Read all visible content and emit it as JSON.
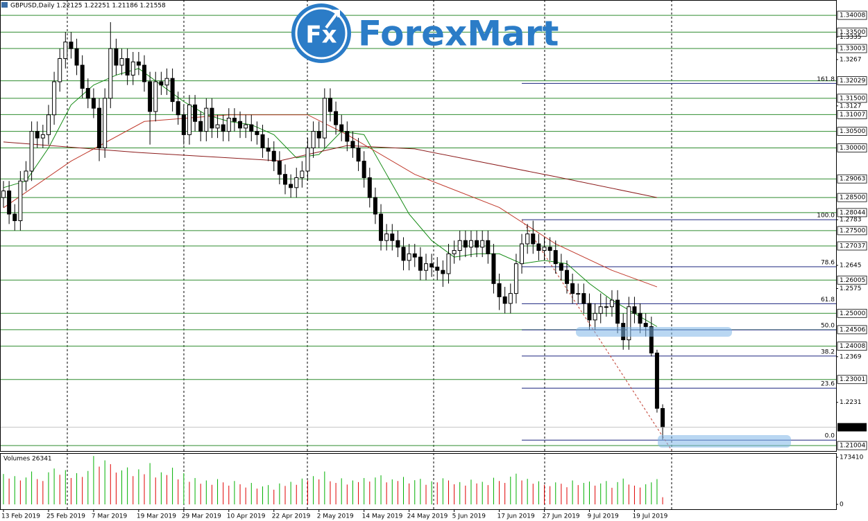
{
  "logo": {
    "badge": "Fx",
    "text": "ForexMart"
  },
  "chart_data": {
    "type": "candlestick",
    "title": "GBPUSD,Daily  1.22125 1.22251 1.21186 1.21558",
    "volume_title": "Volumes 26341",
    "categories": [
      "13 Feb 2019",
      null,
      null,
      null,
      null,
      null,
      null,
      null,
      "25 Feb 2019",
      null,
      null,
      null,
      null,
      null,
      null,
      null,
      "7 Mar 2019",
      null,
      null,
      null,
      null,
      null,
      null,
      null,
      "19 Mar 2019",
      null,
      null,
      null,
      null,
      null,
      null,
      null,
      "29 Mar 2019",
      null,
      null,
      null,
      null,
      null,
      null,
      null,
      "10 Apr 2019",
      null,
      null,
      null,
      null,
      null,
      null,
      null,
      "22 Apr 2019",
      null,
      null,
      null,
      null,
      null,
      null,
      null,
      "2 May 2019",
      null,
      null,
      null,
      null,
      null,
      null,
      null,
      "14 May 2019",
      null,
      null,
      null,
      null,
      null,
      null,
      null,
      "24 May 2019",
      null,
      null,
      null,
      null,
      null,
      null,
      null,
      "5 Jun 2019",
      null,
      null,
      null,
      null,
      null,
      null,
      null,
      "17 Jun 2019",
      null,
      null,
      null,
      null,
      null,
      null,
      null,
      "27 Jun 2019",
      null,
      null,
      null,
      null,
      null,
      null,
      null,
      "9 Jul 2019",
      null,
      null,
      null,
      null,
      null,
      null,
      null,
      "19 Jul 2019",
      null,
      null,
      null,
      null,
      null
    ],
    "ohlc": [
      [
        1.285,
        1.29,
        1.282,
        1.287
      ],
      [
        1.287,
        1.29,
        1.277,
        1.28
      ],
      [
        1.28,
        1.283,
        1.275,
        1.278
      ],
      [
        1.278,
        1.293,
        1.275,
        1.29
      ],
      [
        1.29,
        1.296,
        1.287,
        1.293
      ],
      [
        1.293,
        1.308,
        1.29,
        1.305
      ],
      [
        1.305,
        1.308,
        1.3,
        1.303
      ],
      [
        1.303,
        1.307,
        1.3,
        1.304
      ],
      [
        1.304,
        1.313,
        1.301,
        1.31
      ],
      [
        1.31,
        1.323,
        1.307,
        1.32
      ],
      [
        1.32,
        1.33,
        1.317,
        1.327
      ],
      [
        1.327,
        1.335,
        1.324,
        1.332
      ],
      [
        1.332,
        1.335,
        1.327,
        1.33
      ],
      [
        1.33,
        1.333,
        1.322,
        1.325
      ],
      [
        1.325,
        1.328,
        1.315,
        1.318
      ],
      [
        1.318,
        1.321,
        1.312,
        1.315
      ],
      [
        1.315,
        1.318,
        1.309,
        1.312
      ],
      [
        1.312,
        1.315,
        1.296,
        1.3
      ],
      [
        1.3,
        1.318,
        1.297,
        1.315
      ],
      [
        1.315,
        1.338,
        1.312,
        1.33
      ],
      [
        1.33,
        1.333,
        1.322,
        1.325
      ],
      [
        1.325,
        1.33,
        1.322,
        1.327
      ],
      [
        1.327,
        1.33,
        1.319,
        1.322
      ],
      [
        1.322,
        1.329,
        1.319,
        1.326
      ],
      [
        1.326,
        1.329,
        1.322,
        1.325
      ],
      [
        1.325,
        1.328,
        1.317,
        1.32
      ],
      [
        1.32,
        1.323,
        1.301,
        1.311
      ],
      [
        1.311,
        1.323,
        1.308,
        1.32
      ],
      [
        1.32,
        1.323,
        1.316,
        1.319
      ],
      [
        1.319,
        1.324,
        1.316,
        1.321
      ],
      [
        1.321,
        1.324,
        1.311,
        1.314
      ],
      [
        1.314,
        1.317,
        1.307,
        1.31
      ],
      [
        1.31,
        1.313,
        1.301,
        1.304
      ],
      [
        1.304,
        1.316,
        1.301,
        1.313
      ],
      [
        1.313,
        1.316,
        1.305,
        1.308
      ],
      [
        1.308,
        1.311,
        1.302,
        1.305
      ],
      [
        1.305,
        1.315,
        1.302,
        1.312
      ],
      [
        1.312,
        1.315,
        1.303,
        1.306
      ],
      [
        1.306,
        1.31,
        1.303,
        1.307
      ],
      [
        1.307,
        1.31,
        1.302,
        1.305
      ],
      [
        1.305,
        1.312,
        1.302,
        1.309
      ],
      [
        1.309,
        1.312,
        1.305,
        1.308
      ],
      [
        1.308,
        1.311,
        1.303,
        1.306
      ],
      [
        1.306,
        1.31,
        1.303,
        1.307
      ],
      [
        1.307,
        1.31,
        1.302,
        1.305
      ],
      [
        1.305,
        1.308,
        1.301,
        1.304
      ],
      [
        1.304,
        1.307,
        1.297,
        1.3
      ],
      [
        1.3,
        1.303,
        1.296,
        1.299
      ],
      [
        1.299,
        1.302,
        1.293,
        1.296
      ],
      [
        1.296,
        1.299,
        1.289,
        1.292
      ],
      [
        1.292,
        1.295,
        1.286,
        1.289
      ],
      [
        1.289,
        1.292,
        1.285,
        1.288
      ],
      [
        1.288,
        1.294,
        1.285,
        1.291
      ],
      [
        1.291,
        1.296,
        1.288,
        1.293
      ],
      [
        1.293,
        1.303,
        1.29,
        1.3
      ],
      [
        1.3,
        1.308,
        1.297,
        1.305
      ],
      [
        1.305,
        1.308,
        1.3,
        1.303
      ],
      [
        1.303,
        1.318,
        1.3,
        1.315
      ],
      [
        1.315,
        1.318,
        1.308,
        1.311
      ],
      [
        1.311,
        1.314,
        1.304,
        1.307
      ],
      [
        1.307,
        1.31,
        1.302,
        1.305
      ],
      [
        1.305,
        1.308,
        1.299,
        1.302
      ],
      [
        1.302,
        1.305,
        1.297,
        1.3
      ],
      [
        1.3,
        1.303,
        1.293,
        1.296
      ],
      [
        1.296,
        1.299,
        1.288,
        1.291
      ],
      [
        1.291,
        1.294,
        1.282,
        1.285
      ],
      [
        1.285,
        1.288,
        1.277,
        1.28
      ],
      [
        1.28,
        1.283,
        1.269,
        1.272
      ],
      [
        1.272,
        1.277,
        1.269,
        1.274
      ],
      [
        1.274,
        1.277,
        1.269,
        1.272
      ],
      [
        1.272,
        1.275,
        1.267,
        1.27
      ],
      [
        1.27,
        1.273,
        1.263,
        1.266
      ],
      [
        1.266,
        1.271,
        1.263,
        1.268
      ],
      [
        1.268,
        1.271,
        1.264,
        1.267
      ],
      [
        1.267,
        1.27,
        1.26,
        1.263
      ],
      [
        1.263,
        1.268,
        1.26,
        1.265
      ],
      [
        1.265,
        1.268,
        1.261,
        1.264
      ],
      [
        1.264,
        1.267,
        1.26,
        1.263
      ],
      [
        1.263,
        1.266,
        1.258,
        1.262
      ],
      [
        1.262,
        1.271,
        1.259,
        1.268
      ],
      [
        1.268,
        1.272,
        1.265,
        1.269
      ],
      [
        1.269,
        1.275,
        1.266,
        1.272
      ],
      [
        1.272,
        1.275,
        1.267,
        1.27
      ],
      [
        1.27,
        1.275,
        1.267,
        1.272
      ],
      [
        1.272,
        1.275,
        1.267,
        1.27
      ],
      [
        1.27,
        1.275,
        1.267,
        1.272
      ],
      [
        1.272,
        1.275,
        1.265,
        1.268
      ],
      [
        1.268,
        1.271,
        1.256,
        1.259
      ],
      [
        1.259,
        1.262,
        1.251,
        1.255
      ],
      [
        1.255,
        1.258,
        1.25,
        1.253
      ],
      [
        1.253,
        1.259,
        1.25,
        1.256
      ],
      [
        1.256,
        1.268,
        1.253,
        1.265
      ],
      [
        1.265,
        1.274,
        1.262,
        1.271
      ],
      [
        1.271,
        1.277,
        1.268,
        1.274
      ],
      [
        1.274,
        1.278,
        1.268,
        1.271
      ],
      [
        1.271,
        1.274,
        1.266,
        1.269
      ],
      [
        1.269,
        1.273,
        1.266,
        1.27
      ],
      [
        1.27,
        1.273,
        1.266,
        1.269
      ],
      [
        1.269,
        1.272,
        1.262,
        1.265
      ],
      [
        1.265,
        1.268,
        1.26,
        1.263
      ],
      [
        1.263,
        1.266,
        1.256,
        1.259
      ],
      [
        1.259,
        1.262,
        1.253,
        1.256
      ],
      [
        1.256,
        1.259,
        1.253,
        1.256
      ],
      [
        1.256,
        1.259,
        1.25,
        1.253
      ],
      [
        1.253,
        1.256,
        1.245,
        1.248
      ],
      [
        1.248,
        1.253,
        1.245,
        1.25
      ],
      [
        1.25,
        1.256,
        1.247,
        1.252
      ],
      [
        1.252,
        1.255,
        1.249,
        1.252
      ],
      [
        1.252,
        1.257,
        1.249,
        1.254
      ],
      [
        1.254,
        1.257,
        1.244,
        1.247
      ],
      [
        1.247,
        1.25,
        1.239,
        1.242
      ],
      [
        1.242,
        1.255,
        1.239,
        1.252
      ],
      [
        1.252,
        1.255,
        1.247,
        1.25
      ],
      [
        1.25,
        1.253,
        1.244,
        1.247
      ],
      [
        1.247,
        1.25,
        1.243,
        1.246
      ],
      [
        1.246,
        1.249,
        1.237,
        1.238
      ],
      [
        1.238,
        1.239,
        1.22,
        1.2213
      ],
      [
        1.22125,
        1.22251,
        1.21186,
        1.21558
      ]
    ],
    "volumes": [
      112000,
      95000,
      104000,
      88000,
      99000,
      121000,
      93000,
      86000,
      118000,
      132000,
      109000,
      126000,
      97000,
      115000,
      101000,
      123000,
      178000,
      139000,
      162000,
      148000,
      117000,
      125000,
      136000,
      104000,
      129000,
      111000,
      152000,
      99000,
      118000,
      108000,
      135000,
      92000,
      115000,
      83000,
      97000,
      76000,
      88000,
      72000,
      93000,
      81000,
      69000,
      86000,
      74000,
      62000,
      79000,
      58000,
      66000,
      71000,
      54000,
      77000,
      68000,
      83000,
      72000,
      95000,
      88000,
      104000,
      92000,
      121000,
      85000,
      79000,
      96000,
      73000,
      88000,
      82000,
      97000,
      84000,
      99000,
      107000,
      81000,
      92000,
      86000,
      101000,
      77000,
      89000,
      94000,
      72000,
      85000,
      81000,
      96000,
      88000,
      74000,
      82000,
      69000,
      91000,
      77000,
      83000,
      71000,
      98000,
      86000,
      79000,
      102000,
      113000,
      88000,
      94000,
      76000,
      85000,
      72000,
      67000,
      81000,
      76000,
      63000,
      88000,
      71000,
      79000,
      84000,
      69000,
      77000,
      86000,
      61000,
      82000,
      95000,
      73000,
      69000,
      62000,
      74000,
      81000,
      93000,
      26341
    ],
    "volume_up_color": "#00b000",
    "volume_down_color": "#e00000",
    "ylim": [
      1.2086,
      1.3447
    ],
    "yticks": [
      1.3335,
      1.3267,
      1.3127,
      1.2783,
      1.2645,
      1.2575,
      1.2369,
      1.2231
    ],
    "levels": [
      1.34008,
      {
        "value": 1.335,
        "label": "1.33500"
      },
      1.33003,
      1.32029,
      {
        "value": 1.315,
        "label": "1.31500"
      },
      1.31007,
      {
        "value": 1.305,
        "label": "1.30500"
      },
      {
        "value": 1.3,
        "label": "1.30000"
      },
      1.29063,
      {
        "value": 1.285,
        "label": "1.28500"
      },
      1.28044,
      {
        "value": 1.275,
        "label": "1.27500"
      },
      1.27037,
      1.26005,
      {
        "value": 1.25,
        "label": "1.25000"
      },
      1.24506,
      1.24008,
      1.23001,
      1.21004
    ],
    "level_color": "#2e8b2e",
    "last_price": 1.21558,
    "vlim": [
      0,
      186160
    ],
    "vticks": [
      173410,
      0
    ],
    "ma_lines": [
      {
        "color": "#138a13",
        "points": [
          [
            0,
            1.288
          ],
          [
            4,
            1.29
          ],
          [
            8,
            1.3
          ],
          [
            12,
            1.313
          ],
          [
            16,
            1.319
          ],
          [
            20,
            1.322
          ],
          [
            24,
            1.324
          ],
          [
            28,
            1.319
          ],
          [
            32,
            1.314
          ],
          [
            36,
            1.31
          ],
          [
            40,
            1.308
          ],
          [
            44,
            1.307
          ],
          [
            48,
            1.304
          ],
          [
            52,
            1.297
          ],
          [
            56,
            1.298
          ],
          [
            60,
            1.305
          ],
          [
            64,
            1.304
          ],
          [
            68,
            1.292
          ],
          [
            72,
            1.28
          ],
          [
            76,
            1.272
          ],
          [
            80,
            1.267
          ],
          [
            84,
            1.268
          ],
          [
            88,
            1.268
          ],
          [
            92,
            1.265
          ],
          [
            96,
            1.266
          ],
          [
            100,
            1.265
          ],
          [
            104,
            1.259
          ],
          [
            108,
            1.254
          ],
          [
            112,
            1.25
          ],
          [
            116,
            1.246
          ]
        ]
      },
      {
        "color": "#c0392b",
        "points": [
          [
            0,
            1.2819
          ],
          [
            12,
            1.296
          ],
          [
            25,
            1.308
          ],
          [
            40,
            1.31
          ],
          [
            54,
            1.31
          ],
          [
            61,
            1.304
          ],
          [
            73,
            1.292
          ],
          [
            88,
            1.282
          ],
          [
            98,
            1.271
          ],
          [
            108,
            1.263
          ],
          [
            116,
            1.258
          ]
        ]
      },
      {
        "color": "#8b1a1a",
        "points": [
          [
            0,
            1.3018
          ],
          [
            24,
            1.2986
          ],
          [
            49,
            1.2961
          ],
          [
            61,
            1.3007
          ],
          [
            73,
            1.2997
          ],
          [
            98,
            1.2913
          ],
          [
            116,
            1.285
          ]
        ]
      }
    ],
    "trendline": {
      "color": "#c0392b",
      "points": [
        [
          92,
          1.2783
        ],
        [
          118.6,
          1.2086
        ]
      ]
    },
    "fibo": {
      "color": "#1a237e",
      "start": 92,
      "levels": [
        {
          "value": 161.8,
          "price": 1.3195
        },
        {
          "value": 100,
          "label": "100.0",
          "price": 1.2783
        },
        {
          "value": 78.6,
          "price": 1.2641
        },
        {
          "value": 61.8,
          "price": 1.2529
        },
        {
          "value": 50,
          "label": "50.0",
          "price": 1.245
        },
        {
          "value": 38.2,
          "price": 1.2371
        },
        {
          "value": 23.6,
          "price": 1.2274
        },
        {
          "value": 0,
          "label": "0.0",
          "price": 1.2117
        }
      ]
    }
  }
}
